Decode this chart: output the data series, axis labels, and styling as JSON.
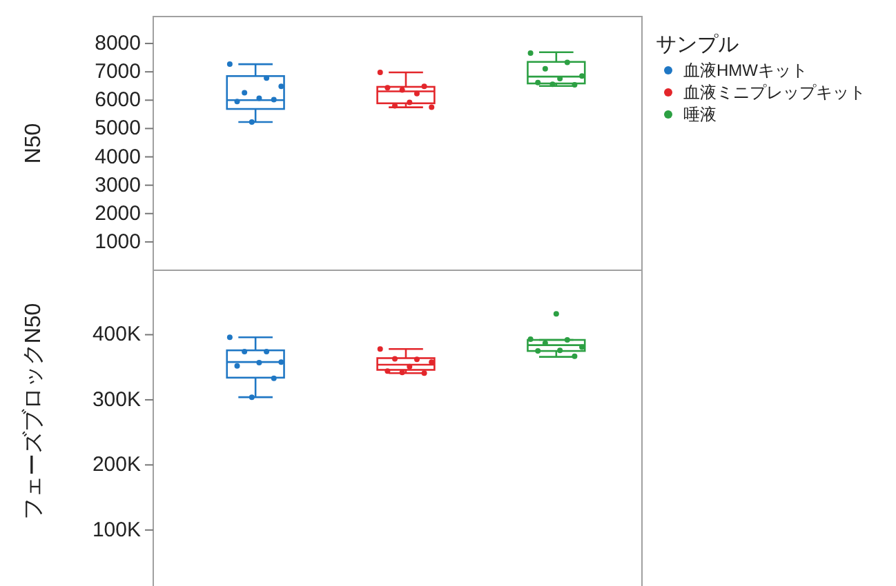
{
  "chart_data": [
    {
      "type": "box",
      "ylabel": "N50",
      "legend_title": "サンプル",
      "legend": "right",
      "categories": [
        null,
        null,
        null
      ],
      "ylim": [
        0,
        8950
      ],
      "yticks": [
        1000,
        2000,
        3000,
        4000,
        5000,
        6000,
        7000,
        8000
      ],
      "tick_labels": "y",
      "grid": false,
      "series": [
        {
          "name": "血液HMWキット",
          "color": "#1f77c4",
          "boxes": [
            {
              "low": 5230,
              "q1": 5690,
              "median": 6000,
              "q3": 6850,
              "high": 7270
            },
            null,
            null
          ]
        },
        {
          "name": "血液ミニプレップキット",
          "color": "#e3262b",
          "boxes": [
            null,
            {
              "low": 5750,
              "q1": 5890,
              "median": 6310,
              "q3": 6470,
              "high": 6980
            },
            null
          ]
        },
        {
          "name": "唾液",
          "color": "#2ca043",
          "boxes": [
            null,
            null,
            {
              "low": 6500,
              "q1": 6590,
              "median": 6830,
              "q3": 7350,
              "high": 7690
            }
          ]
        },
        {
          "type": "scatter",
          "colors": [
            "#1f77c4",
            "#e3262b",
            "#2ca043"
          ],
          "values": [
            7270,
            6980,
            7660
          ]
        },
        {
          "type": "scatter",
          "colors": [
            "#1f77c4",
            "#e3262b",
            "#2ca043"
          ],
          "values": [
            6780,
            6230,
            7330
          ]
        },
        {
          "type": "scatter",
          "colors": [
            "#1f77c4",
            "#e3262b",
            "#2ca043"
          ],
          "values": [
            6260,
            5800,
            7110
          ]
        },
        {
          "type": "scatter",
          "colors": [
            "#1f77c4",
            "#e3262b",
            "#2ca043"
          ],
          "values": [
            6490,
            5750,
            6850
          ]
        },
        {
          "type": "scatter",
          "colors": [
            "#1f77c4",
            "#e3262b",
            "#2ca043"
          ],
          "values": [
            6070,
            5920,
            6760
          ]
        },
        {
          "type": "scatter",
          "colors": [
            "#1f77c4",
            "#e3262b",
            "#2ca043"
          ],
          "values": [
            5950,
            6440,
            6620
          ]
        },
        {
          "type": "scatter",
          "colors": [
            "#1f77c4",
            "#e3262b",
            "#2ca043"
          ],
          "values": [
            6020,
            6490,
            6540
          ]
        },
        {
          "type": "scatter",
          "colors": [
            "#1f77c4",
            "#e3262b",
            "#2ca043"
          ],
          "values": [
            5230,
            6360,
            6560
          ]
        }
      ]
    },
    {
      "type": "box",
      "ylabel": "フェーズブロックN50",
      "categories": [
        null,
        null,
        null
      ],
      "ylim": [
        14000,
        499000
      ],
      "yticks": [
        {
          "value": 100000,
          "label": "100K"
        },
        {
          "value": 200000,
          "label": "200K"
        },
        {
          "value": 300000,
          "label": "300K"
        },
        {
          "value": 400000,
          "label": "400K"
        }
      ],
      "tick_labels": "y",
      "grid": false,
      "series": [
        {
          "color": "#1f77c4",
          "boxes": [
            {
              "low": 304000,
              "q1": 334000,
              "median": 358000,
              "q3": 376000,
              "high": 396000
            },
            null,
            null
          ]
        },
        {
          "color": "#e3262b",
          "boxes": [
            null,
            {
              "low": 341000,
              "q1": 346000,
              "median": 354000,
              "q3": 364000,
              "high": 378000
            },
            null
          ]
        },
        {
          "color": "#2ca043",
          "boxes": [
            null,
            null,
            {
              "low": 366000,
              "q1": 375000,
              "median": 384000,
              "q3": 392000,
              "high": 392000,
              "outliers": [
                432000
              ]
            }
          ]
        },
        {
          "type": "scatter",
          "colors": [
            "#1f77c4",
            "#e3262b",
            "#2ca043"
          ],
          "values": [
            396000,
            378000,
            393000
          ]
        },
        {
          "type": "scatter",
          "colors": [
            "#1f77c4",
            "#e3262b",
            "#2ca043"
          ],
          "values": [
            374000,
            362000,
            392000
          ]
        },
        {
          "type": "scatter",
          "colors": [
            "#1f77c4",
            "#e3262b",
            "#2ca043"
          ],
          "values": [
            374000,
            363000,
            387000
          ]
        },
        {
          "type": "scatter",
          "colors": [
            "#1f77c4",
            "#e3262b",
            "#2ca043"
          ],
          "values": [
            358000,
            358000,
            381000
          ]
        },
        {
          "type": "scatter",
          "colors": [
            "#1f77c4",
            "#e3262b",
            "#2ca043"
          ],
          "values": [
            357000,
            351000,
            376000
          ]
        },
        {
          "type": "scatter",
          "colors": [
            "#1f77c4",
            "#e3262b",
            "#2ca043"
          ],
          "values": [
            352000,
            344000,
            375000
          ]
        },
        {
          "type": "scatter",
          "colors": [
            "#1f77c4",
            "#e3262b",
            "#2ca043"
          ],
          "values": [
            333000,
            341000,
            367000
          ]
        },
        {
          "type": "scatter",
          "colors": [
            "#1f77c4",
            "#e3262b",
            null
          ],
          "values": [
            304000,
            342000,
            null
          ]
        }
      ]
    }
  ]
}
